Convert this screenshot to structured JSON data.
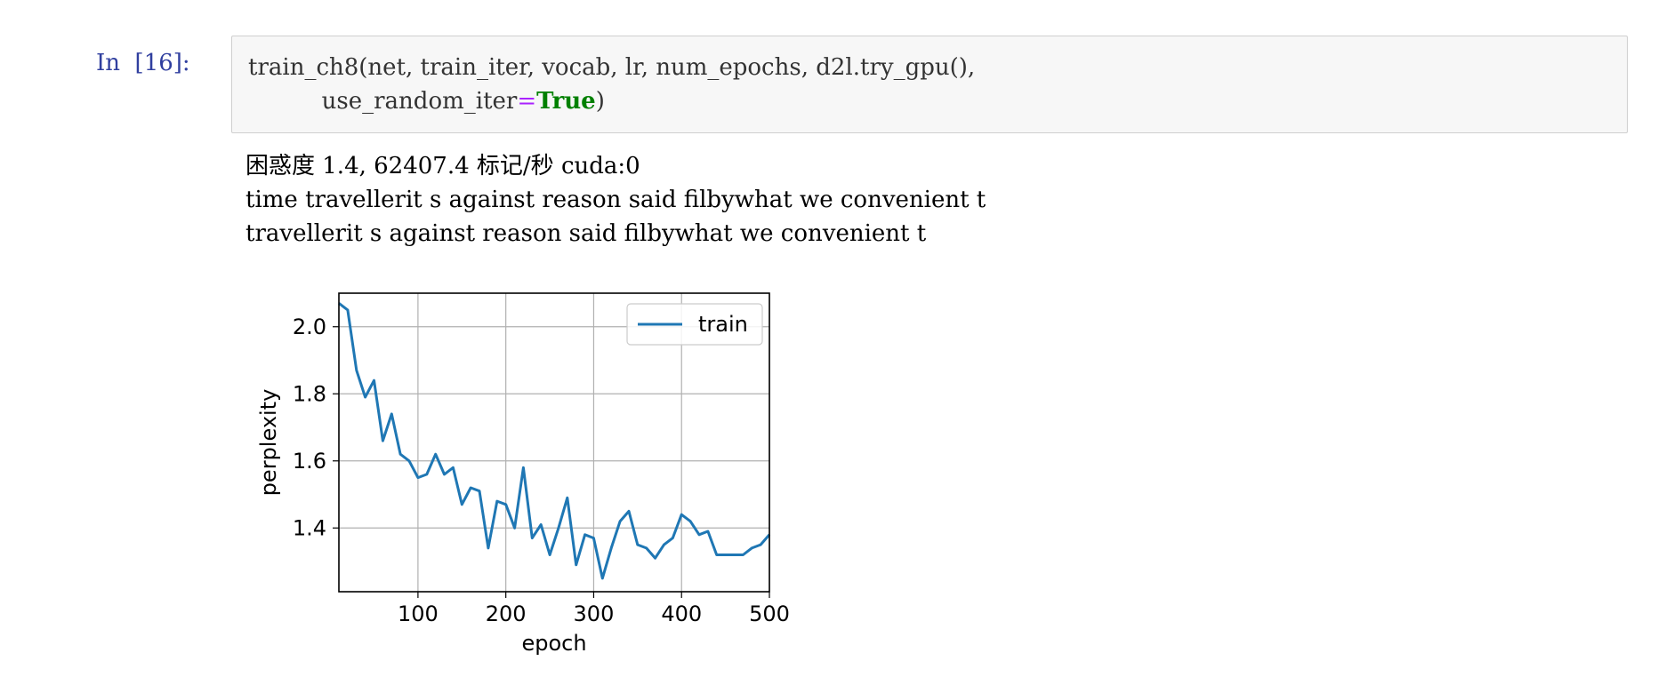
{
  "cell": {
    "prompt": "In  [16]:",
    "code_line1": "train_ch8(net, train_iter, vocab, lr, num_epochs, d2l.try_gpu(),",
    "code_line2_pre": "          use_random_iter",
    "code_line2_op": "=",
    "code_line2_kw": "True",
    "code_line2_post": ")"
  },
  "output": {
    "lines": [
      "困惑度 1.4, 62407.4 标记/秒 cuda:0",
      "time travellerit s against reason said filbywhat we convenient t",
      "travellerit s against reason said filbywhat we convenient t"
    ]
  },
  "chart_data": {
    "type": "line",
    "xlabel": "epoch",
    "ylabel": "perplexity",
    "xlim": [
      10,
      500
    ],
    "ylim": [
      1.21,
      2.1
    ],
    "xticks": [
      100,
      200,
      300,
      400,
      500
    ],
    "yticks": [
      1.4,
      1.6,
      1.8,
      2.0
    ],
    "xtick_labels": [
      "100",
      "200",
      "300",
      "400",
      "500"
    ],
    "ytick_labels": [
      "1.4",
      "1.6",
      "1.8",
      "2.0"
    ],
    "grid": true,
    "legend": "top-right",
    "line_color": "#1f77b4",
    "series": [
      {
        "name": "train",
        "x": [
          10,
          20,
          30,
          40,
          50,
          60,
          70,
          80,
          90,
          100,
          110,
          120,
          130,
          140,
          150,
          160,
          170,
          180,
          190,
          200,
          210,
          220,
          230,
          240,
          250,
          260,
          270,
          280,
          290,
          300,
          310,
          320,
          330,
          340,
          350,
          360,
          370,
          380,
          390,
          400,
          410,
          420,
          430,
          440,
          450,
          460,
          470,
          480,
          490,
          500
        ],
        "y": [
          2.07,
          2.05,
          1.87,
          1.79,
          1.84,
          1.66,
          1.74,
          1.62,
          1.6,
          1.55,
          1.56,
          1.62,
          1.56,
          1.58,
          1.47,
          1.52,
          1.51,
          1.34,
          1.48,
          1.47,
          1.4,
          1.58,
          1.37,
          1.41,
          1.32,
          1.4,
          1.49,
          1.29,
          1.38,
          1.37,
          1.25,
          1.34,
          1.42,
          1.45,
          1.35,
          1.34,
          1.31,
          1.35,
          1.37,
          1.44,
          1.42,
          1.38,
          1.39,
          1.32,
          1.32,
          1.32,
          1.32,
          1.34,
          1.35,
          1.38
        ]
      }
    ]
  }
}
